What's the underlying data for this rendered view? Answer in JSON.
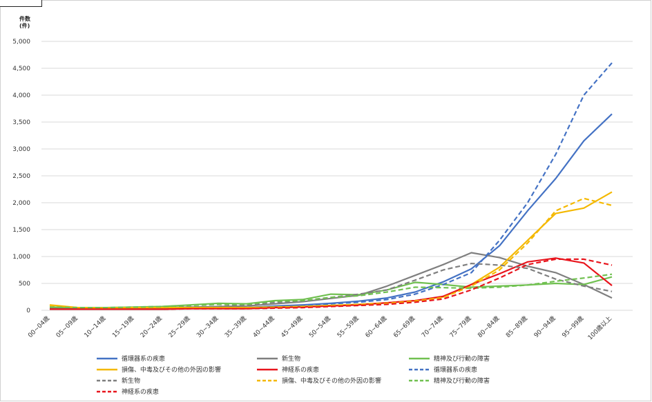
{
  "chart_data": {
    "type": "line",
    "unit_line1": "件数",
    "unit_line2": "(件)",
    "ylim": [
      0,
      5000
    ],
    "yticks": [
      "0",
      "500",
      "1,000",
      "1,500",
      "2,000",
      "2,500",
      "3,000",
      "3,500",
      "4,000",
      "4,500",
      "5,000"
    ],
    "ytick_values": [
      0,
      500,
      1000,
      1500,
      2000,
      2500,
      3000,
      3500,
      4000,
      4500,
      5000
    ],
    "categories": [
      "00~04歳",
      "05~09歳",
      "10~14歳",
      "15~19歳",
      "20~24歳",
      "25~29歳",
      "30~34歳",
      "35~39歳",
      "40~44歳",
      "45~49歳",
      "50~54歳",
      "55~59歳",
      "60~64歳",
      "65~69歳",
      "70~74歳",
      "75~79歳",
      "80~84歳",
      "85~89歳",
      "90~94歳",
      "95~99歳",
      "100歳以上"
    ],
    "grid": true,
    "legend_position": "bottom",
    "series": [
      {
        "name": "循環器系の疾患",
        "color": "#4472c4",
        "dash": "solid",
        "values": [
          30,
          20,
          20,
          25,
          30,
          40,
          50,
          50,
          80,
          100,
          130,
          170,
          230,
          340,
          530,
          770,
          1200,
          1850,
          2450,
          3150,
          3650
        ]
      },
      {
        "name": "新生物",
        "color": "#7f7f7f",
        "dash": "solid",
        "values": [
          40,
          30,
          30,
          40,
          50,
          60,
          70,
          80,
          120,
          160,
          220,
          280,
          450,
          650,
          850,
          1070,
          980,
          820,
          700,
          480,
          230
        ]
      },
      {
        "name": "精神及び行動の障害",
        "color": "#70c050",
        "dash": "solid",
        "values": [
          60,
          50,
          50,
          60,
          70,
          100,
          130,
          120,
          180,
          200,
          300,
          290,
          380,
          520,
          480,
          430,
          450,
          470,
          500,
          480,
          620
        ]
      },
      {
        "name": "損傷、中毒及びその他の外因の影響",
        "color": "#f4b800",
        "dash": "solid",
        "values": [
          100,
          50,
          40,
          50,
          50,
          50,
          50,
          50,
          60,
          70,
          90,
          110,
          140,
          180,
          250,
          480,
          800,
          1300,
          1800,
          1900,
          2200
        ]
      },
      {
        "name": "神経系の疾患",
        "color": "#e8141c",
        "dash": "solid",
        "values": [
          20,
          20,
          20,
          20,
          20,
          30,
          30,
          30,
          50,
          60,
          80,
          100,
          140,
          180,
          260,
          480,
          680,
          900,
          970,
          880,
          460
        ]
      },
      {
        "name": "循環器系の疾患",
        "color": "#4472c4",
        "dash": "dashed",
        "values": [
          30,
          20,
          20,
          25,
          30,
          40,
          40,
          50,
          70,
          90,
          120,
          150,
          200,
          300,
          480,
          700,
          1300,
          2000,
          2900,
          4000,
          4600
        ]
      },
      {
        "name": "新生物",
        "color": "#7f7f7f",
        "dash": "dashed",
        "values": [
          40,
          30,
          30,
          40,
          50,
          60,
          70,
          100,
          150,
          180,
          240,
          300,
          380,
          560,
          750,
          870,
          840,
          780,
          580,
          450,
          350
        ]
      },
      {
        "name": "損傷、中毒及びその他の外因の影響",
        "color": "#f4b800",
        "dash": "dashed",
        "values": [
          90,
          50,
          40,
          50,
          50,
          50,
          50,
          50,
          60,
          70,
          90,
          100,
          130,
          170,
          240,
          450,
          750,
          1250,
          1850,
          2080,
          1950
        ]
      },
      {
        "name": "精神及び行動の障害",
        "color": "#70c050",
        "dash": "dashed",
        "values": [
          60,
          50,
          50,
          60,
          70,
          90,
          110,
          110,
          170,
          180,
          240,
          270,
          340,
          430,
          420,
          410,
          430,
          470,
          540,
          600,
          670
        ]
      },
      {
        "name": "神経系の疾患",
        "color": "#e8141c",
        "dash": "dashed",
        "values": [
          20,
          20,
          20,
          20,
          20,
          30,
          30,
          30,
          40,
          50,
          70,
          90,
          110,
          150,
          210,
          380,
          600,
          850,
          950,
          950,
          840
        ]
      }
    ]
  }
}
